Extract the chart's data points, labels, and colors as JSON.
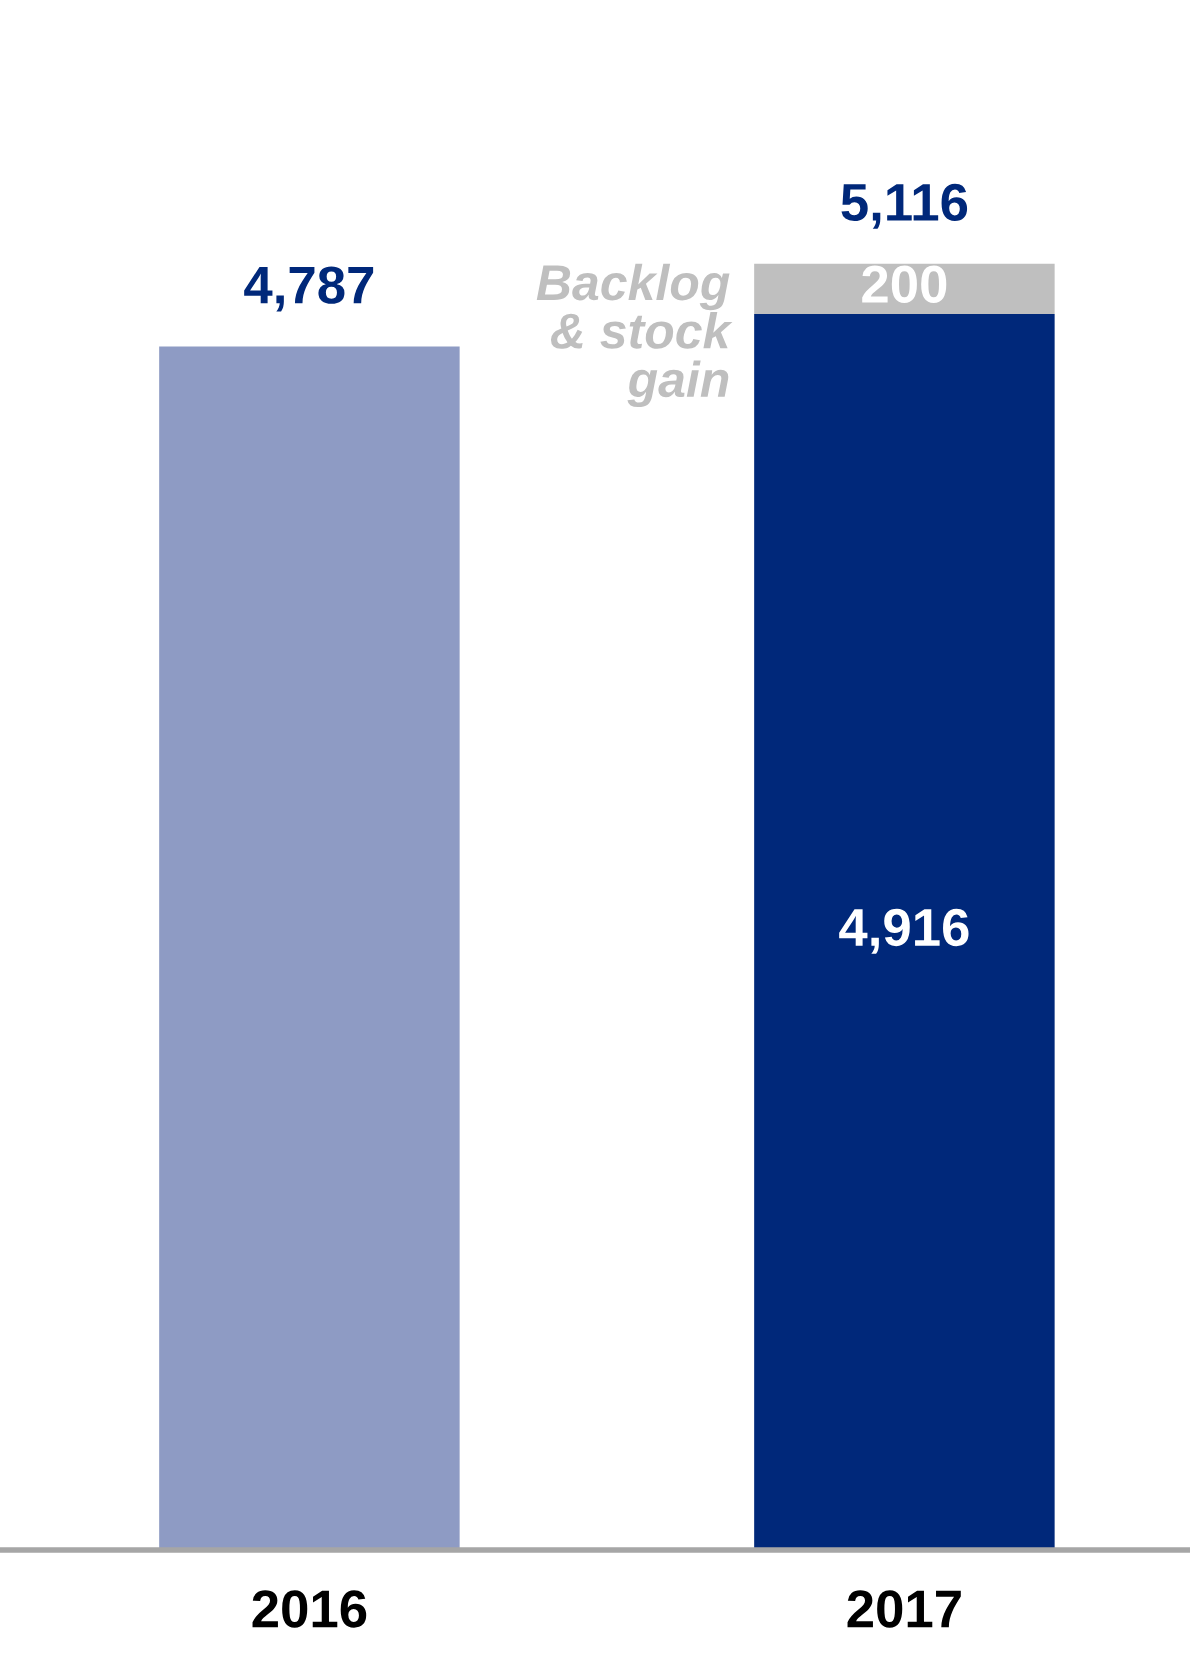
{
  "chart_data": {
    "type": "bar",
    "stacked": true,
    "categories": [
      "2016",
      "2017"
    ],
    "series": [
      {
        "colors": [
          "#8e9bc4",
          "#00287a"
        ],
        "values": [
          4787,
          4916
        ],
        "value_labels": [
          null,
          "4,916"
        ]
      },
      {
        "name": "Backlog\n& stock\ngain",
        "color": "#bfbfbf",
        "values": [
          null,
          200
        ],
        "value_labels": [
          null,
          "200"
        ]
      }
    ],
    "totals": [
      "4,787",
      "5,116"
    ]
  }
}
